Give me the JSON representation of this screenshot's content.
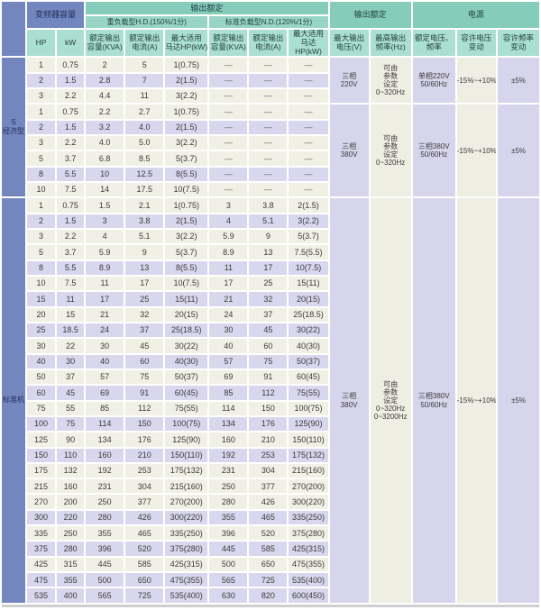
{
  "table": {
    "header": {
      "corner": "",
      "capacity_group": "变频器容量",
      "hp": "HP",
      "kw": "kW",
      "output_rating_load": "输出额定",
      "hd_group": "重负载型H.D.(150%/1分)",
      "nd_group": "标准负载型N.D.(120%/1分)",
      "sub_capacity": "额定输出\n容量(KVA)",
      "sub_current": "额定输出\n电流(A)",
      "sub_motor": "最大适用\n马达HP(kW)",
      "output_rating_vf": "输出额定",
      "max_voltage": "最大输出\n电压(V)",
      "max_freq": "最高输出\n频率(Hz)",
      "power_group": "电源",
      "rated_voltage_freq": "额定电压、\n频率",
      "voltage_tolerance": "容许电压\n变动",
      "freq_tolerance": "容许频率\n变动"
    },
    "sections": [
      {
        "label": "S\n经济型",
        "groups": [
          {
            "span": {
              "voltage": "三相\n220V",
              "freq": "可由\n参数\n设定\n0~320Hz",
              "supply": "单相220V\n50/60Hz",
              "volt_var": "-15%~+10%",
              "freq_var": "±5%"
            },
            "rows": [
              {
                "hp": "1",
                "kw": "0.75",
                "hd": [
                  "2",
                  "5",
                  "1(0.75)"
                ],
                "nd": [
                  "—",
                  "—",
                  "—"
                ],
                "shade": "c"
              },
              {
                "hp": "2",
                "kw": "1.5",
                "hd": [
                  "2.8",
                  "7",
                  "2(1.5)"
                ],
                "nd": [
                  "—",
                  "—",
                  "—"
                ],
                "shade": "l"
              },
              {
                "hp": "3",
                "kw": "2.2",
                "hd": [
                  "4.4",
                  "11",
                  "3(2.2)"
                ],
                "nd": [
                  "—",
                  "—",
                  "—"
                ],
                "shade": "c"
              }
            ]
          },
          {
            "span": {
              "voltage": "三相\n380V",
              "freq": "可由\n参数\n设定\n0~320Hz",
              "supply": "三相380V\n50/60Hz",
              "volt_var": "-15%~+10%",
              "freq_var": "±5%"
            },
            "rows": [
              {
                "hp": "1",
                "kw": "0.75",
                "hd": [
                  "2.2",
                  "2.7",
                  "1(0.75)"
                ],
                "nd": [
                  "—",
                  "—",
                  "—"
                ],
                "shade": "c"
              },
              {
                "hp": "2",
                "kw": "1.5",
                "hd": [
                  "3.2",
                  "4.0",
                  "2(1.5)"
                ],
                "nd": [
                  "—",
                  "—",
                  "—"
                ],
                "shade": "l"
              },
              {
                "hp": "3",
                "kw": "2.2",
                "hd": [
                  "4.0",
                  "5.0",
                  "3(2.2)"
                ],
                "nd": [
                  "—",
                  "—",
                  "—"
                ],
                "shade": "c"
              },
              {
                "hp": "5",
                "kw": "3.7",
                "hd": [
                  "6.8",
                  "8.5",
                  "5(3.7)"
                ],
                "nd": [
                  "—",
                  "—",
                  "—"
                ],
                "shade": "c"
              },
              {
                "hp": "8",
                "kw": "5.5",
                "hd": [
                  "10",
                  "12.5",
                  "8(5.5)"
                ],
                "nd": [
                  "—",
                  "—",
                  "—"
                ],
                "shade": "l"
              },
              {
                "hp": "10",
                "kw": "7.5",
                "hd": [
                  "14",
                  "17.5",
                  "10(7.5)"
                ],
                "nd": [
                  "—",
                  "—",
                  "—"
                ],
                "shade": "c"
              }
            ]
          }
        ]
      },
      {
        "label": "标准机",
        "groups": [
          {
            "span": {
              "voltage": "三相\n380V",
              "freq": "可由\n参数\n设定\n0~320Hz\n0~3200Hz",
              "supply": "三相380V\n50/60Hz",
              "volt_var": "-15%~+10%",
              "freq_var": "±5%"
            },
            "rows": [
              {
                "hp": "1",
                "kw": "0.75",
                "hd": [
                  "1.5",
                  "2.1",
                  "1(0.75)"
                ],
                "nd": [
                  "3",
                  "3.8",
                  "2(1.5)"
                ],
                "shade": "c"
              },
              {
                "hp": "2",
                "kw": "1.5",
                "hd": [
                  "3",
                  "3.8",
                  "2(1.5)"
                ],
                "nd": [
                  "4",
                  "5.1",
                  "3(2.2)"
                ],
                "shade": "l"
              },
              {
                "hp": "3",
                "kw": "2.2",
                "hd": [
                  "4",
                  "5.1",
                  "3(2.2)"
                ],
                "nd": [
                  "5.9",
                  "9",
                  "5(3.7)"
                ],
                "shade": "c"
              },
              {
                "hp": "5",
                "kw": "3.7",
                "hd": [
                  "5.9",
                  "9",
                  "5(3.7)"
                ],
                "nd": [
                  "8.9",
                  "13",
                  "7.5(5.5)"
                ],
                "shade": "c"
              },
              {
                "hp": "8",
                "kw": "5.5",
                "hd": [
                  "8.9",
                  "13",
                  "8(5.5)"
                ],
                "nd": [
                  "11",
                  "17",
                  "10(7.5)"
                ],
                "shade": "l"
              },
              {
                "hp": "10",
                "kw": "7.5",
                "hd": [
                  "11",
                  "17",
                  "10(7.5)"
                ],
                "nd": [
                  "17",
                  "25",
                  "15(11)"
                ],
                "shade": "c"
              },
              {
                "hp": "15",
                "kw": "11",
                "hd": [
                  "17",
                  "25",
                  "15(11)"
                ],
                "nd": [
                  "21",
                  "32",
                  "20(15)"
                ],
                "shade": "l"
              },
              {
                "hp": "20",
                "kw": "15",
                "hd": [
                  "21",
                  "32",
                  "20(15)"
                ],
                "nd": [
                  "24",
                  "37",
                  "25(18.5)"
                ],
                "shade": "c"
              },
              {
                "hp": "25",
                "kw": "18.5",
                "hd": [
                  "24",
                  "37",
                  "25(18.5)"
                ],
                "nd": [
                  "30",
                  "45",
                  "30(22)"
                ],
                "shade": "l"
              },
              {
                "hp": "30",
                "kw": "22",
                "hd": [
                  "30",
                  "45",
                  "30(22)"
                ],
                "nd": [
                  "40",
                  "60",
                  "40(30)"
                ],
                "shade": "c"
              },
              {
                "hp": "40",
                "kw": "30",
                "hd": [
                  "40",
                  "60",
                  "40(30)"
                ],
                "nd": [
                  "57",
                  "75",
                  "50(37)"
                ],
                "shade": "l"
              },
              {
                "hp": "50",
                "kw": "37",
                "hd": [
                  "57",
                  "75",
                  "50(37)"
                ],
                "nd": [
                  "69",
                  "91",
                  "60(45)"
                ],
                "shade": "c"
              },
              {
                "hp": "60",
                "kw": "45",
                "hd": [
                  "69",
                  "91",
                  "60(45)"
                ],
                "nd": [
                  "85",
                  "112",
                  "75(55)"
                ],
                "shade": "l"
              },
              {
                "hp": "75",
                "kw": "55",
                "hd": [
                  "85",
                  "112",
                  "75(55)"
                ],
                "nd": [
                  "114",
                  "150",
                  "100(75)"
                ],
                "shade": "c"
              },
              {
                "hp": "100",
                "kw": "75",
                "hd": [
                  "114",
                  "150",
                  "100(75)"
                ],
                "nd": [
                  "134",
                  "176",
                  "125(90)"
                ],
                "shade": "l"
              },
              {
                "hp": "125",
                "kw": "90",
                "hd": [
                  "134",
                  "176",
                  "125(90)"
                ],
                "nd": [
                  "160",
                  "210",
                  "150(110)"
                ],
                "shade": "c"
              },
              {
                "hp": "150",
                "kw": "110",
                "hd": [
                  "160",
                  "210",
                  "150(110)"
                ],
                "nd": [
                  "192",
                  "253",
                  "175(132)"
                ],
                "shade": "l"
              },
              {
                "hp": "175",
                "kw": "132",
                "hd": [
                  "192",
                  "253",
                  "175(132)"
                ],
                "nd": [
                  "231",
                  "304",
                  "215(160)"
                ],
                "shade": "c"
              },
              {
                "hp": "215",
                "kw": "160",
                "hd": [
                  "231",
                  "304",
                  "215(160)"
                ],
                "nd": [
                  "250",
                  "377",
                  "270(200)"
                ],
                "shade": "c"
              },
              {
                "hp": "270",
                "kw": "200",
                "hd": [
                  "250",
                  "377",
                  "270(200)"
                ],
                "nd": [
                  "280",
                  "426",
                  "300(220)"
                ],
                "shade": "c"
              },
              {
                "hp": "300",
                "kw": "220",
                "hd": [
                  "280",
                  "426",
                  "300(220)"
                ],
                "nd": [
                  "355",
                  "465",
                  "335(250)"
                ],
                "shade": "l"
              },
              {
                "hp": "335",
                "kw": "250",
                "hd": [
                  "355",
                  "465",
                  "335(250)"
                ],
                "nd": [
                  "396",
                  "520",
                  "375(280)"
                ],
                "shade": "c"
              },
              {
                "hp": "375",
                "kw": "280",
                "hd": [
                  "396",
                  "520",
                  "375(280)"
                ],
                "nd": [
                  "445",
                  "585",
                  "425(315)"
                ],
                "shade": "l"
              },
              {
                "hp": "425",
                "kw": "315",
                "hd": [
                  "445",
                  "585",
                  "425(315)"
                ],
                "nd": [
                  "500",
                  "650",
                  "475(355)"
                ],
                "shade": "c"
              },
              {
                "hp": "475",
                "kw": "355",
                "hd": [
                  "500",
                  "650",
                  "475(355)"
                ],
                "nd": [
                  "565",
                  "725",
                  "535(400)"
                ],
                "shade": "l"
              },
              {
                "hp": "535",
                "kw": "400",
                "hd": [
                  "565",
                  "725",
                  "535(400)"
                ],
                "nd": [
                  "630",
                  "820",
                  "600(450)"
                ],
                "shade": "l"
              }
            ]
          }
        ]
      }
    ]
  },
  "colors": {
    "header_teal_dark": "#85ccbb",
    "header_teal_mid": "#98d5c6",
    "header_teal_light": "#abdfd1",
    "blue": "#7387be",
    "row_cream": "#f1f0e4",
    "row_lavender": "#d9d7ee",
    "gap_white": "#ffffff"
  }
}
